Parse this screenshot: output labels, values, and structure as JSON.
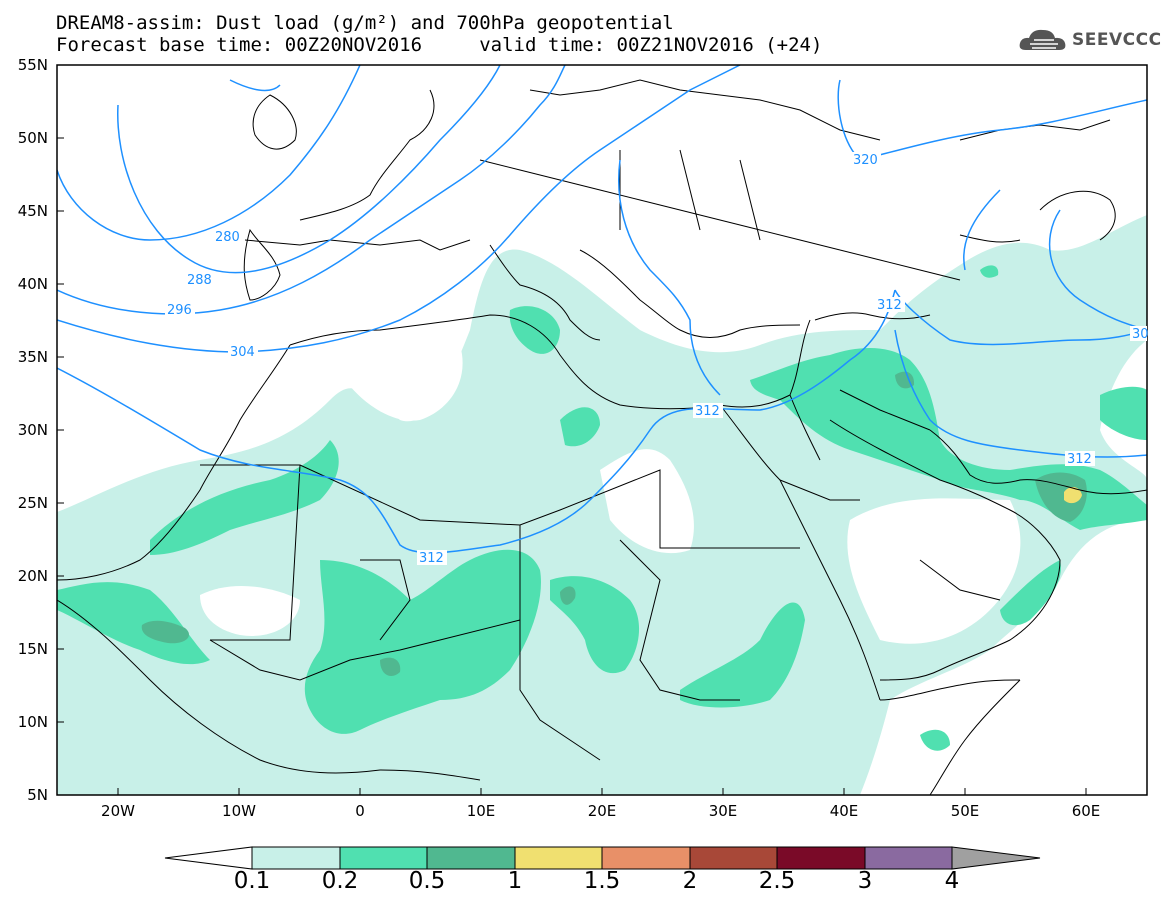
{
  "title": {
    "line1": "DREAM8-assim: Dust load (g/m²) and 700hPa geopotential",
    "line2": "Forecast base time: 00Z20NOV2016     valid time: 00Z21NOV2016 (+24)"
  },
  "logo": {
    "icon": "cloud-icon",
    "text": "SEEVCCC"
  },
  "map": {
    "lon_range": [
      -25,
      65
    ],
    "lat_range": [
      5,
      55
    ],
    "lat_labels": [
      "55N",
      "50N",
      "45N",
      "40N",
      "35N",
      "30N",
      "25N",
      "20N",
      "15N",
      "10N",
      "5N"
    ],
    "lon_labels": [
      "20W",
      "10W",
      "0",
      "10E",
      "20E",
      "30E",
      "40E",
      "50E",
      "60E"
    ],
    "contour_labels": [
      "280",
      "288",
      "296",
      "304",
      "312",
      "312",
      "312",
      "312",
      "320",
      "30"
    ],
    "contour_color": "#1e90ff"
  },
  "colorbar": {
    "labels": [
      "0.1",
      "0.2",
      "0.5",
      "1",
      "1.5",
      "2",
      "2.5",
      "3",
      "4"
    ],
    "colors": [
      "#c8f0e8",
      "#50e0b0",
      "#50b890",
      "#f0e070",
      "#e89068",
      "#a84838",
      "#7a0a28",
      "#8a6aa0",
      "#a0a0a0"
    ]
  }
}
